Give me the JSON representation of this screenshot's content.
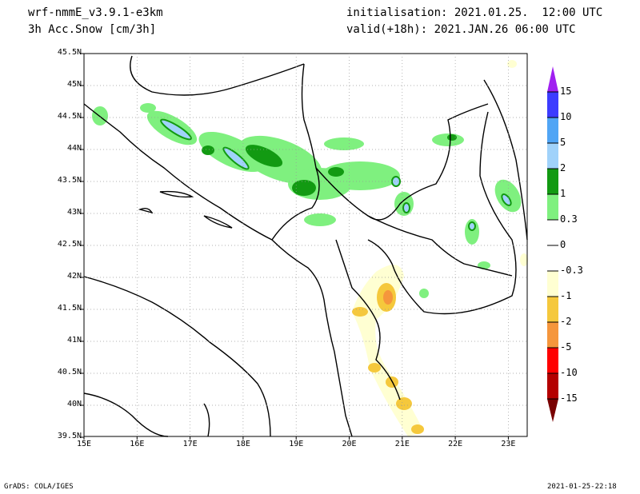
{
  "header": {
    "model": "wrf-nmmE_v3.9.1-e3km",
    "variable": "3h Acc.Snow [cm/3h]",
    "initialisation": "initialisation: 2021.01.25.  12:00 UTC",
    "valid": "valid(+18h): 2021.JAN.26 06:00 UTC"
  },
  "axes": {
    "lat_labels": [
      "45.5N",
      "45N",
      "44.5N",
      "44N",
      "43.5N",
      "43N",
      "42.5N",
      "42N",
      "41.5N",
      "41N",
      "40.5N",
      "40N",
      "39.5N"
    ],
    "lon_labels": [
      "15E",
      "16E",
      "17E",
      "18E",
      "19E",
      "20E",
      "21E",
      "22E",
      "23E"
    ]
  },
  "colorbar": {
    "labels": [
      "15",
      "10",
      "5",
      "2",
      "1",
      "0.3",
      "0",
      "-0.3",
      "-1",
      "-2",
      "-5",
      "-10",
      "-15"
    ],
    "colors": [
      "#a020f0",
      "#3c3cff",
      "#50a5f5",
      "#a0d2fa",
      "#129a12",
      "#7ff07f",
      "#ffffff",
      "#ffffff",
      "#ffffd2",
      "#f5c83c",
      "#f5963c",
      "#ff0000",
      "#b40000",
      "#780000"
    ]
  },
  "footer": {
    "left": "GrADS: COLA/IGES",
    "right": "2021-01-25-22:18"
  }
}
